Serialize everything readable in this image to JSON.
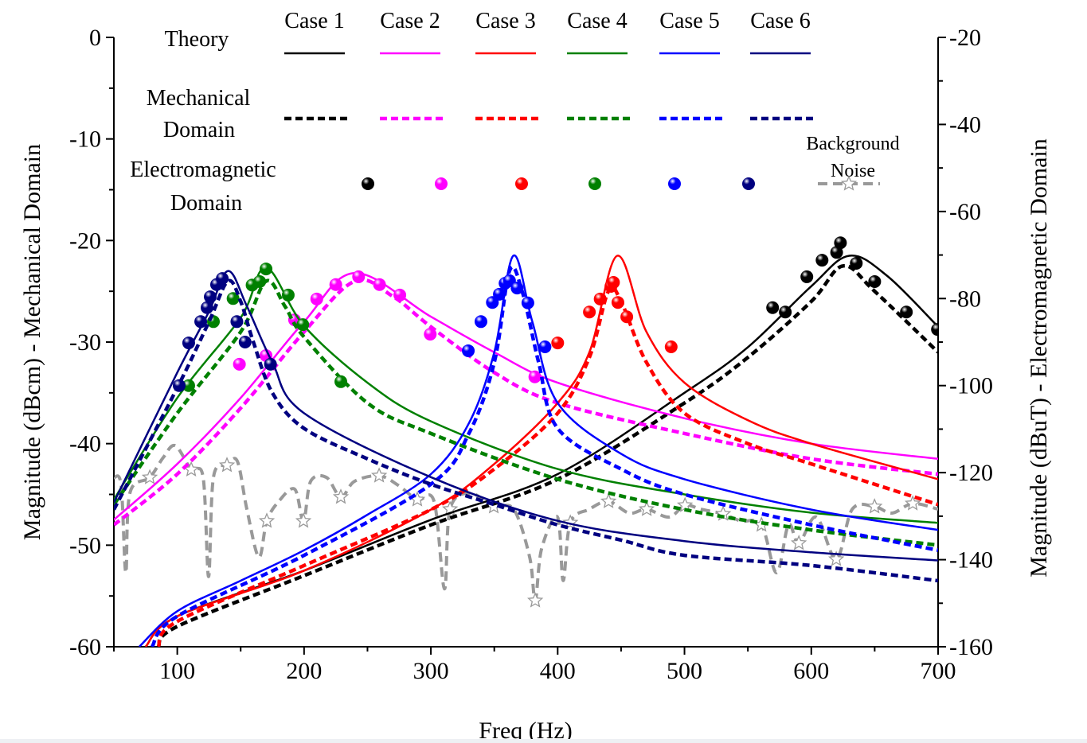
{
  "chart_data": {
    "type": "line",
    "title": "",
    "xlabel": "Freq (Hz)",
    "ylabel_left": "Magnitude (dBcm) - Mechanical Domain",
    "ylabel_right": "Magnitude (dBuT) - Electromagnetic Domain",
    "xlim": [
      50,
      700
    ],
    "ylim_left": [
      -60,
      0
    ],
    "ylim_right": [
      -160,
      -20
    ],
    "x_ticks": [
      100,
      200,
      300,
      400,
      500,
      600,
      700
    ],
    "y_ticks_left": [
      0,
      -10,
      -20,
      -30,
      -40,
      -50,
      -60
    ],
    "y_ticks_right": [
      -20,
      -40,
      -60,
      -80,
      -100,
      -120,
      -140,
      -160
    ],
    "grid": false,
    "legend": {
      "placement": "top",
      "row_labels": {
        "theory": "Theory",
        "mechanical_1": "Mechanical",
        "mechanical_2": "Domain",
        "em_1": "Electromagnetic",
        "em_2": "Domain",
        "noise_1": "Background",
        "noise_2": "Noise"
      }
    },
    "cases": [
      {
        "name": "Case 1",
        "color": "#000000",
        "theory": [
          [
            75,
            -60
          ],
          [
            100,
            -57
          ],
          [
            200,
            -52.5
          ],
          [
            300,
            -47.5
          ],
          [
            400,
            -43
          ],
          [
            500,
            -35
          ],
          [
            550,
            -30.5
          ],
          [
            600,
            -24.5
          ],
          [
            630,
            -21.5
          ],
          [
            660,
            -23.5
          ],
          [
            700,
            -28.5
          ]
        ],
        "mechanical": [
          [
            85,
            -60
          ],
          [
            100,
            -58
          ],
          [
            200,
            -53
          ],
          [
            300,
            -48
          ],
          [
            400,
            -43.5
          ],
          [
            500,
            -36
          ],
          [
            550,
            -31.5
          ],
          [
            600,
            -26
          ],
          [
            625,
            -22.5
          ],
          [
            650,
            -25
          ],
          [
            700,
            -31
          ]
        ],
        "electromagnetic": [
          [
            569.5,
            -82.1
          ],
          [
            579.5,
            -83.1
          ],
          [
            596.5,
            -75
          ],
          [
            608.5,
            -71.2
          ],
          [
            620,
            -69.4
          ],
          [
            623,
            -67.2
          ],
          [
            635.5,
            -71.9
          ],
          [
            650,
            -76.1
          ],
          [
            675,
            -83.1
          ],
          [
            699.5,
            -87.1
          ]
        ]
      },
      {
        "name": "Case 2",
        "color": "#ff00ff",
        "theory": [
          [
            50,
            -47.5
          ],
          [
            100,
            -42
          ],
          [
            150,
            -35.5
          ],
          [
            200,
            -28
          ],
          [
            240,
            -23.2
          ],
          [
            300,
            -27.5
          ],
          [
            350,
            -31
          ],
          [
            400,
            -34
          ],
          [
            500,
            -37.5
          ],
          [
            600,
            -40
          ],
          [
            700,
            -41.5
          ]
        ],
        "mechanical": [
          [
            50,
            -48
          ],
          [
            100,
            -43
          ],
          [
            150,
            -36.5
          ],
          [
            200,
            -29
          ],
          [
            240,
            -24
          ],
          [
            270,
            -25.5
          ],
          [
            300,
            -28.5
          ],
          [
            350,
            -33
          ],
          [
            400,
            -36
          ],
          [
            500,
            -39
          ],
          [
            600,
            -41.5
          ],
          [
            700,
            -43
          ]
        ],
        "electromagnetic": [
          [
            149,
            -95.1
          ],
          [
            170,
            -93.1
          ],
          [
            192.5,
            -84.9
          ],
          [
            210,
            -80.1
          ],
          [
            225,
            -76.8
          ],
          [
            243,
            -75
          ],
          [
            259.5,
            -76.8
          ],
          [
            275.5,
            -79.2
          ],
          [
            299.5,
            -88.2
          ],
          [
            382,
            -98
          ]
        ]
      },
      {
        "name": "Case 3",
        "color": "#ff0000",
        "theory": [
          [
            75,
            -60
          ],
          [
            100,
            -57
          ],
          [
            200,
            -52.5
          ],
          [
            300,
            -46.5
          ],
          [
            350,
            -42
          ],
          [
            400,
            -36
          ],
          [
            425,
            -31
          ],
          [
            447,
            -21.5
          ],
          [
            470,
            -29
          ],
          [
            500,
            -34
          ],
          [
            550,
            -37.7
          ],
          [
            600,
            -40
          ],
          [
            700,
            -43.5
          ]
        ],
        "mechanical": [
          [
            85,
            -60
          ],
          [
            100,
            -57.5
          ],
          [
            200,
            -52
          ],
          [
            300,
            -46.5
          ],
          [
            350,
            -42.5
          ],
          [
            400,
            -37
          ],
          [
            425,
            -31.5
          ],
          [
            440,
            -25
          ],
          [
            450,
            -26
          ],
          [
            470,
            -32
          ],
          [
            500,
            -37
          ],
          [
            550,
            -40
          ],
          [
            600,
            -42
          ],
          [
            700,
            -46
          ]
        ],
        "electromagnetic": [
          [
            400,
            -90.2
          ],
          [
            425,
            -83.1
          ],
          [
            433.5,
            -80.1
          ],
          [
            442,
            -77.2
          ],
          [
            444,
            -76.3
          ],
          [
            447.5,
            -80.9
          ],
          [
            454.5,
            -84.2
          ],
          [
            489.5,
            -91.1
          ]
        ]
      },
      {
        "name": "Case 4",
        "color": "#008000",
        "theory": [
          [
            50,
            -45.5
          ],
          [
            100,
            -35.5
          ],
          [
            150,
            -27.6
          ],
          [
            170,
            -22.7
          ],
          [
            200,
            -28.4
          ],
          [
            250,
            -34
          ],
          [
            300,
            -37.8
          ],
          [
            400,
            -42.5
          ],
          [
            500,
            -45
          ],
          [
            600,
            -46.8
          ],
          [
            700,
            -47.8
          ]
        ],
        "mechanical": [
          [
            50,
            -46
          ],
          [
            100,
            -37
          ],
          [
            150,
            -29
          ],
          [
            170,
            -24
          ],
          [
            185,
            -26.5
          ],
          [
            200,
            -29.5
          ],
          [
            250,
            -36
          ],
          [
            300,
            -39
          ],
          [
            400,
            -43.5
          ],
          [
            500,
            -46.5
          ],
          [
            600,
            -48.5
          ],
          [
            700,
            -50
          ]
        ],
        "electromagnetic": [
          [
            109,
            -100
          ],
          [
            128.5,
            -85.3
          ],
          [
            144,
            -80
          ],
          [
            159,
            -76.9
          ],
          [
            165,
            -76.1
          ],
          [
            170,
            -73.2
          ],
          [
            187.5,
            -79.2
          ],
          [
            199,
            -86
          ],
          [
            229,
            -99.1
          ]
        ]
      },
      {
        "name": "Case 5",
        "color": "#0000ff",
        "theory": [
          [
            70,
            -60
          ],
          [
            100,
            -56.5
          ],
          [
            150,
            -53.5
          ],
          [
            200,
            -50.5
          ],
          [
            250,
            -47
          ],
          [
            300,
            -43
          ],
          [
            330,
            -38
          ],
          [
            350,
            -31
          ],
          [
            365,
            -21.5
          ],
          [
            380,
            -28
          ],
          [
            400,
            -36
          ],
          [
            450,
            -41
          ],
          [
            500,
            -43.5
          ],
          [
            600,
            -46.5
          ],
          [
            700,
            -48.5
          ]
        ],
        "mechanical": [
          [
            80,
            -60
          ],
          [
            100,
            -57
          ],
          [
            200,
            -51
          ],
          [
            300,
            -44
          ],
          [
            330,
            -39
          ],
          [
            350,
            -32
          ],
          [
            362,
            -23
          ],
          [
            372,
            -25
          ],
          [
            385,
            -32
          ],
          [
            400,
            -38.5
          ],
          [
            450,
            -42.5
          ],
          [
            500,
            -45
          ],
          [
            600,
            -48
          ],
          [
            700,
            -50.5
          ]
        ],
        "electromagnetic": [
          [
            329.5,
            -92
          ],
          [
            339.5,
            -85.3
          ],
          [
            348.5,
            -80.9
          ],
          [
            354,
            -79
          ],
          [
            358.5,
            -76.5
          ],
          [
            362,
            -75.9
          ],
          [
            368,
            -77.6
          ],
          [
            376.5,
            -81
          ],
          [
            390,
            -91.1
          ]
        ]
      },
      {
        "name": "Case 6",
        "color": "#000080",
        "theory": [
          [
            50,
            -45.8
          ],
          [
            100,
            -33
          ],
          [
            125,
            -27
          ],
          [
            140,
            -23
          ],
          [
            155,
            -26.5
          ],
          [
            175,
            -32
          ],
          [
            200,
            -37
          ],
          [
            300,
            -43.3
          ],
          [
            400,
            -47.6
          ],
          [
            500,
            -49.6
          ],
          [
            600,
            -50.7
          ],
          [
            700,
            -51.5
          ]
        ],
        "mechanical": [
          [
            50,
            -46.5
          ],
          [
            100,
            -34.5
          ],
          [
            125,
            -28
          ],
          [
            140,
            -24
          ],
          [
            150,
            -26
          ],
          [
            160,
            -30
          ],
          [
            175,
            -35
          ],
          [
            200,
            -38.5
          ],
          [
            250,
            -41.5
          ],
          [
            300,
            -44
          ],
          [
            350,
            -46
          ],
          [
            400,
            -48
          ],
          [
            450,
            -49.5
          ],
          [
            500,
            -51
          ],
          [
            600,
            -52
          ],
          [
            700,
            -53.5
          ]
        ],
        "electromagnetic": [
          [
            101.5,
            -100
          ],
          [
            109,
            -90.2
          ],
          [
            118.5,
            -85.3
          ],
          [
            123.5,
            -82.1
          ],
          [
            126,
            -79.6
          ],
          [
            131,
            -76.8
          ],
          [
            135.5,
            -75.4
          ],
          [
            147,
            -85.3
          ],
          [
            153.5,
            -90
          ],
          [
            173.5,
            -95.1
          ]
        ]
      }
    ],
    "background_noise": {
      "color": "#999999",
      "axis": "right",
      "points": [
        [
          50,
          -121.1
        ],
        [
          55.7,
          -122.9
        ],
        [
          59.4,
          -143
        ],
        [
          62.6,
          -124.7
        ],
        [
          78.3,
          -121.1
        ],
        [
          89,
          -116.5
        ],
        [
          98.4,
          -113.8
        ],
        [
          111,
          -119.3
        ],
        [
          120.4,
          -121.1
        ],
        [
          124.7,
          -143.9
        ],
        [
          128.5,
          -121.1
        ],
        [
          139.2,
          -118.3
        ],
        [
          147.4,
          -117.4
        ],
        [
          154.9,
          -128.4
        ],
        [
          164.3,
          -139.4
        ],
        [
          170.6,
          -131.1
        ],
        [
          180,
          -126.6
        ],
        [
          192.6,
          -123.8
        ],
        [
          199.5,
          -131.1
        ],
        [
          205.2,
          -122
        ],
        [
          217.7,
          -121.1
        ],
        [
          229,
          -125.6
        ],
        [
          239.7,
          -122
        ],
        [
          259.2,
          -120.7
        ],
        [
          274.2,
          -122.9
        ],
        [
          289.3,
          -126.2
        ],
        [
          302.5,
          -126.6
        ],
        [
          310.7,
          -146.7
        ],
        [
          315.1,
          -128.4
        ],
        [
          330.8,
          -124.7
        ],
        [
          349.6,
          -127.8
        ],
        [
          365.3,
          -128.4
        ],
        [
          377.9,
          -139.4
        ],
        [
          382.3,
          -149.4
        ],
        [
          387.3,
          -137.5
        ],
        [
          399.9,
          -130.2
        ],
        [
          404.3,
          -144.8
        ],
        [
          410,
          -131.5
        ],
        [
          425,
          -128.4
        ],
        [
          440.1,
          -126.6
        ],
        [
          456.4,
          -129.3
        ],
        [
          470.2,
          -128.4
        ],
        [
          487.8,
          -130.2
        ],
        [
          500.4,
          -127.5
        ],
        [
          512.9,
          -128.4
        ],
        [
          530.5,
          -129.5
        ],
        [
          544.4,
          -131.1
        ],
        [
          560.7,
          -132
        ],
        [
          572.6,
          -143
        ],
        [
          582,
          -132
        ],
        [
          590.2,
          -136.2
        ],
        [
          604,
          -130.2
        ],
        [
          619.7,
          -139.9
        ],
        [
          632.3,
          -128.4
        ],
        [
          649.9,
          -127.8
        ],
        [
          663.7,
          -129.3
        ],
        [
          680,
          -127.1
        ],
        [
          700,
          -128.4
        ]
      ],
      "marker_x": [
        78.3,
        111,
        139.2,
        170.6,
        199.5,
        229,
        259.2,
        289.3,
        315.1,
        349.6,
        382.3,
        410,
        440.1,
        470.2,
        500.4,
        530.5,
        560.7,
        590.2,
        619.7,
        649.9,
        680
      ]
    }
  }
}
